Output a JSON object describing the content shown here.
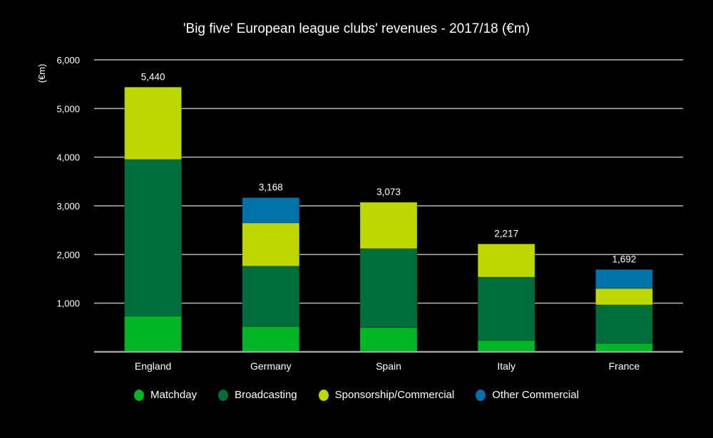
{
  "chart_data": {
    "type": "bar",
    "stacked": true,
    "title": "'Big five' European league clubs' revenues - 2017/18 (€m)",
    "xlabel": "",
    "ylabel": "(€m)",
    "ylim": [
      0,
      6000
    ],
    "yticks": [
      1000,
      2000,
      3000,
      4000,
      5000,
      6000
    ],
    "ytick_labels": [
      "1,000",
      "2,000",
      "3,000",
      "4,000",
      "5,000",
      "6,000"
    ],
    "grid": true,
    "legend_position": "bottom",
    "categories": [
      "England",
      "Germany",
      "Spain",
      "Italy",
      "France"
    ],
    "series": [
      {
        "name": "Matchday",
        "color": "#00b624",
        "values": [
          735,
          520,
          500,
          235,
          175
        ]
      },
      {
        "name": "Broadcasting",
        "color": "#006e3a",
        "values": [
          3218,
          1240,
          1620,
          1300,
          790
        ]
      },
      {
        "name": "Sponsorship/Commercial",
        "color": "#bcd800",
        "values": [
          1487,
          890,
          953,
          682,
          337
        ]
      },
      {
        "name": "Other Commercial",
        "color": "#0072ab",
        "values": [
          0,
          518,
          0,
          0,
          390
        ]
      }
    ],
    "totals": [
      5440,
      3168,
      3073,
      2217,
      1692
    ],
    "total_labels": [
      "5,440",
      "3,168",
      "3,073",
      "2,217",
      "1,692"
    ]
  }
}
